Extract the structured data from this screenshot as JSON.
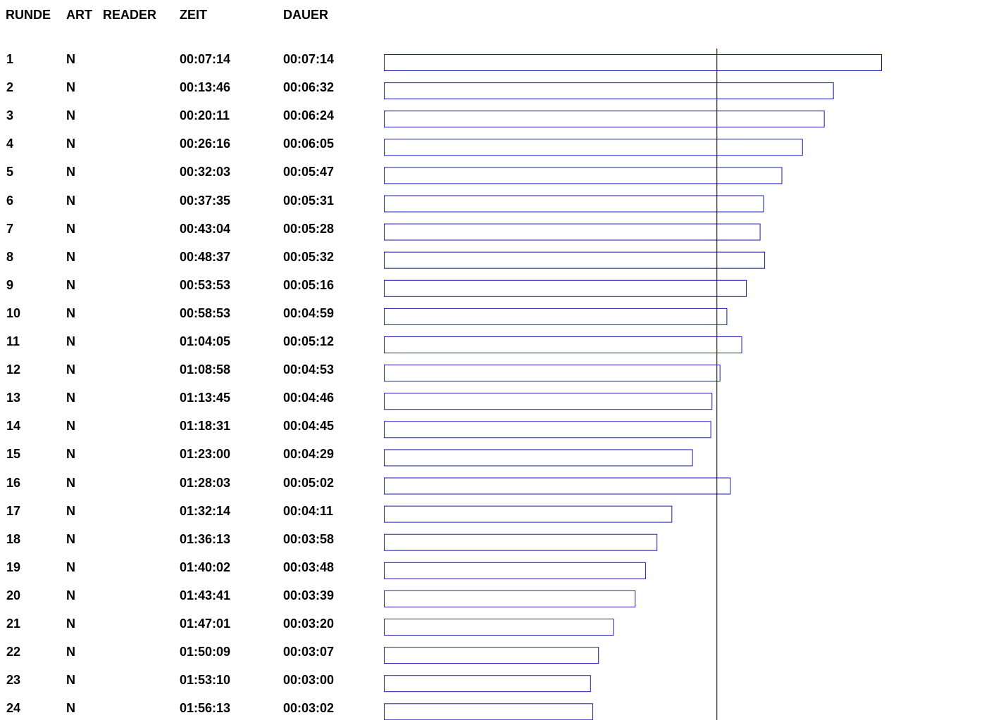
{
  "headers": {
    "runde": "RUNDE",
    "art": "ART",
    "reader": "READER",
    "zeit": "ZEIT",
    "dauer": "DAUER"
  },
  "rows": [
    {
      "runde": "1",
      "art": "N",
      "reader": "",
      "zeit": "00:07:14",
      "dauer": "00:07:14"
    },
    {
      "runde": "2",
      "art": "N",
      "reader": "",
      "zeit": "00:13:46",
      "dauer": "00:06:32"
    },
    {
      "runde": "3",
      "art": "N",
      "reader": "",
      "zeit": "00:20:11",
      "dauer": "00:06:24"
    },
    {
      "runde": "4",
      "art": "N",
      "reader": "",
      "zeit": "00:26:16",
      "dauer": "00:06:05"
    },
    {
      "runde": "5",
      "art": "N",
      "reader": "",
      "zeit": "00:32:03",
      "dauer": "00:05:47"
    },
    {
      "runde": "6",
      "art": "N",
      "reader": "",
      "zeit": "00:37:35",
      "dauer": "00:05:31"
    },
    {
      "runde": "7",
      "art": "N",
      "reader": "",
      "zeit": "00:43:04",
      "dauer": "00:05:28"
    },
    {
      "runde": "8",
      "art": "N",
      "reader": "",
      "zeit": "00:48:37",
      "dauer": "00:05:32"
    },
    {
      "runde": "9",
      "art": "N",
      "reader": "",
      "zeit": "00:53:53",
      "dauer": "00:05:16"
    },
    {
      "runde": "10",
      "art": "N",
      "reader": "",
      "zeit": "00:58:53",
      "dauer": "00:04:59"
    },
    {
      "runde": "11",
      "art": "N",
      "reader": "",
      "zeit": "01:04:05",
      "dauer": "00:05:12"
    },
    {
      "runde": "12",
      "art": "N",
      "reader": "",
      "zeit": "01:08:58",
      "dauer": "00:04:53"
    },
    {
      "runde": "13",
      "art": "N",
      "reader": "",
      "zeit": "01:13:45",
      "dauer": "00:04:46"
    },
    {
      "runde": "14",
      "art": "N",
      "reader": "",
      "zeit": "01:18:31",
      "dauer": "00:04:45"
    },
    {
      "runde": "15",
      "art": "N",
      "reader": "",
      "zeit": "01:23:00",
      "dauer": "00:04:29"
    },
    {
      "runde": "16",
      "art": "N",
      "reader": "",
      "zeit": "01:28:03",
      "dauer": "00:05:02"
    },
    {
      "runde": "17",
      "art": "N",
      "reader": "",
      "zeit": "01:32:14",
      "dauer": "00:04:11"
    },
    {
      "runde": "18",
      "art": "N",
      "reader": "",
      "zeit": "01:36:13",
      "dauer": "00:03:58"
    },
    {
      "runde": "19",
      "art": "N",
      "reader": "",
      "zeit": "01:40:02",
      "dauer": "00:03:48"
    },
    {
      "runde": "20",
      "art": "N",
      "reader": "",
      "zeit": "01:43:41",
      "dauer": "00:03:39"
    },
    {
      "runde": "21",
      "art": "N",
      "reader": "",
      "zeit": "01:47:01",
      "dauer": "00:03:20"
    },
    {
      "runde": "22",
      "art": "N",
      "reader": "",
      "zeit": "01:50:09",
      "dauer": "00:03:07"
    },
    {
      "runde": "23",
      "art": "N",
      "reader": "",
      "zeit": "01:53:10",
      "dauer": "00:03:00"
    },
    {
      "runde": "24",
      "art": "N",
      "reader": "",
      "zeit": "01:56:13",
      "dauer": "00:03:02"
    }
  ],
  "chart_data": {
    "type": "bar",
    "orientation": "horizontal",
    "value_unit": "seconds",
    "categories": [
      "1",
      "2",
      "3",
      "4",
      "5",
      "6",
      "7",
      "8",
      "9",
      "10",
      "11",
      "12",
      "13",
      "14",
      "15",
      "16",
      "17",
      "18",
      "19",
      "20",
      "21",
      "22",
      "23",
      "24"
    ],
    "values": [
      434,
      392,
      384,
      365,
      347,
      331,
      328,
      332,
      316,
      299,
      312,
      293,
      286,
      285,
      269,
      302,
      251,
      238,
      228,
      219,
      200,
      187,
      180,
      182
    ],
    "reference_line": 290,
    "bar_outline_color": "#1a1ab8",
    "bar_fill_color": "#ffffff",
    "reference_line_color": "#000000"
  }
}
